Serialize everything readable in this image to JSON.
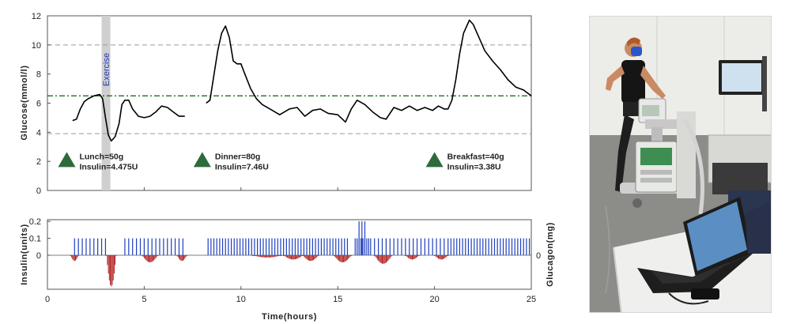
{
  "chart_data": [
    {
      "type": "line",
      "ylabel": "Glucose(mmol/l)",
      "xlim": [
        0,
        25
      ],
      "ylim": [
        0,
        12
      ],
      "y_ticks": [
        "0",
        "2",
        "4",
        "6",
        "8",
        "10",
        "12"
      ],
      "reference_lines": [
        {
          "y": 10,
          "style": "dashed",
          "color": "#9a9a9a"
        },
        {
          "y": 3.9,
          "style": "dashed",
          "color": "#9a9a9a"
        },
        {
          "y": 6.5,
          "style": "dash-dot",
          "color": "#1f6b2a"
        }
      ],
      "shaded_band": {
        "x": [
          2.8,
          3.25
        ],
        "label": "Exercise"
      },
      "series": [
        {
          "segments": [
            [
              [
                1.3,
                4.8
              ],
              [
                1.5,
                4.9
              ],
              [
                1.7,
                5.6
              ],
              [
                1.9,
                6.1
              ],
              [
                2.1,
                6.3
              ],
              [
                2.4,
                6.5
              ],
              [
                2.7,
                6.6
              ],
              [
                2.85,
                6.3
              ],
              [
                3.0,
                5.0
              ],
              [
                3.15,
                3.8
              ],
              [
                3.3,
                3.4
              ],
              [
                3.5,
                3.7
              ],
              [
                3.7,
                4.6
              ],
              [
                3.85,
                5.9
              ],
              [
                4.0,
                6.2
              ],
              [
                4.2,
                6.2
              ],
              [
                4.4,
                5.6
              ],
              [
                4.7,
                5.1
              ],
              [
                5.0,
                5.0
              ],
              [
                5.3,
                5.1
              ],
              [
                5.6,
                5.4
              ],
              [
                5.9,
                5.8
              ],
              [
                6.2,
                5.7
              ],
              [
                6.5,
                5.4
              ],
              [
                6.8,
                5.1
              ],
              [
                7.1,
                5.1
              ]
            ],
            [
              [
                8.2,
                6.0
              ],
              [
                8.4,
                6.2
              ],
              [
                8.6,
                7.9
              ],
              [
                8.8,
                9.6
              ],
              [
                9.0,
                10.8
              ],
              [
                9.2,
                11.3
              ],
              [
                9.4,
                10.5
              ],
              [
                9.6,
                8.9
              ],
              [
                9.8,
                8.7
              ],
              [
                10.0,
                8.7
              ],
              [
                10.2,
                8.0
              ],
              [
                10.5,
                7.0
              ],
              [
                10.8,
                6.3
              ],
              [
                11.1,
                5.9
              ],
              [
                11.5,
                5.6
              ],
              [
                12.0,
                5.2
              ],
              [
                12.5,
                5.6
              ],
              [
                12.9,
                5.7
              ],
              [
                13.3,
                5.1
              ],
              [
                13.7,
                5.5
              ],
              [
                14.1,
                5.6
              ],
              [
                14.5,
                5.3
              ],
              [
                15.0,
                5.2
              ],
              [
                15.4,
                4.7
              ],
              [
                15.7,
                5.6
              ],
              [
                16.0,
                6.2
              ],
              [
                16.4,
                5.9
              ],
              [
                16.8,
                5.4
              ],
              [
                17.2,
                5.0
              ],
              [
                17.5,
                4.9
              ],
              [
                17.9,
                5.7
              ],
              [
                18.3,
                5.5
              ],
              [
                18.7,
                5.8
              ],
              [
                19.1,
                5.5
              ],
              [
                19.5,
                5.7
              ],
              [
                19.9,
                5.5
              ],
              [
                20.2,
                5.8
              ],
              [
                20.5,
                5.6
              ],
              [
                20.7,
                5.6
              ],
              [
                20.9,
                6.2
              ],
              [
                21.1,
                7.6
              ],
              [
                21.3,
                9.4
              ],
              [
                21.5,
                10.8
              ],
              [
                21.8,
                11.7
              ],
              [
                22.0,
                11.4
              ],
              [
                22.3,
                10.5
              ],
              [
                22.6,
                9.6
              ],
              [
                23.0,
                8.9
              ],
              [
                23.4,
                8.3
              ],
              [
                23.8,
                7.6
              ],
              [
                24.2,
                7.1
              ],
              [
                24.6,
                6.9
              ],
              [
                25.0,
                6.5
              ]
            ]
          ]
        }
      ],
      "annotations": [
        {
          "x": 1.0,
          "y": 2.1,
          "lines": [
            "Lunch=50g",
            "Insulin=4.475U"
          ]
        },
        {
          "x": 8.0,
          "y": 2.1,
          "lines": [
            "Dinner=80g",
            "Insulin=7.46U"
          ]
        },
        {
          "x": 20.0,
          "y": 2.1,
          "lines": [
            "Breakfast=40g",
            "Insulin=3.38U"
          ]
        }
      ]
    },
    {
      "type": "bar",
      "ylabel_left": "Insulin(units)",
      "ylabel_right": "Glucagon(mg)",
      "xlabel": "Time(hours)",
      "xlim": [
        0,
        25
      ],
      "x_ticks": [
        "0",
        "5",
        "10",
        "15",
        "20",
        "25"
      ],
      "y_ticks_left": [
        "0",
        "0.1",
        "0.2"
      ],
      "y_ticks_right": [
        "0"
      ],
      "insulin_color": "#1f3fbf",
      "glucagon_color": "#b02222",
      "insulin": {
        "pulse_value": 0.1,
        "ranges": [
          [
            1.4,
            3.0,
            0.2
          ],
          [
            4.0,
            7.1,
            0.2
          ],
          [
            8.3,
            15.6,
            0.15
          ],
          [
            15.9,
            16.6,
            0.1
          ],
          [
            16.7,
            20.5,
            0.2
          ],
          [
            20.7,
            25.0,
            0.15
          ]
        ],
        "high_pulses": [
          {
            "x": 16.1,
            "value": 0.2
          },
          {
            "x": 16.25,
            "value": 0.2
          },
          {
            "x": 16.4,
            "value": 0.2
          }
        ]
      },
      "glucagon": [
        {
          "x0": 1.2,
          "x1": 1.6,
          "peak": -0.02
        },
        {
          "x0": 3.05,
          "x1": 3.55,
          "peak": -0.11
        },
        {
          "x0": 4.9,
          "x1": 5.7,
          "peak": -0.025
        },
        {
          "x0": 6.7,
          "x1": 7.2,
          "peak": -0.02
        },
        {
          "x0": 10.6,
          "x1": 12.1,
          "peak": -0.008
        },
        {
          "x0": 12.2,
          "x1": 13.2,
          "peak": -0.015
        },
        {
          "x0": 13.2,
          "x1": 14.0,
          "peak": -0.02
        },
        {
          "x0": 14.8,
          "x1": 15.7,
          "peak": -0.025
        },
        {
          "x0": 16.9,
          "x1": 17.8,
          "peak": -0.03
        },
        {
          "x0": 18.5,
          "x1": 19.2,
          "peak": -0.015
        },
        {
          "x0": 20.0,
          "x1": 20.7,
          "peak": -0.015
        }
      ]
    }
  ]
}
